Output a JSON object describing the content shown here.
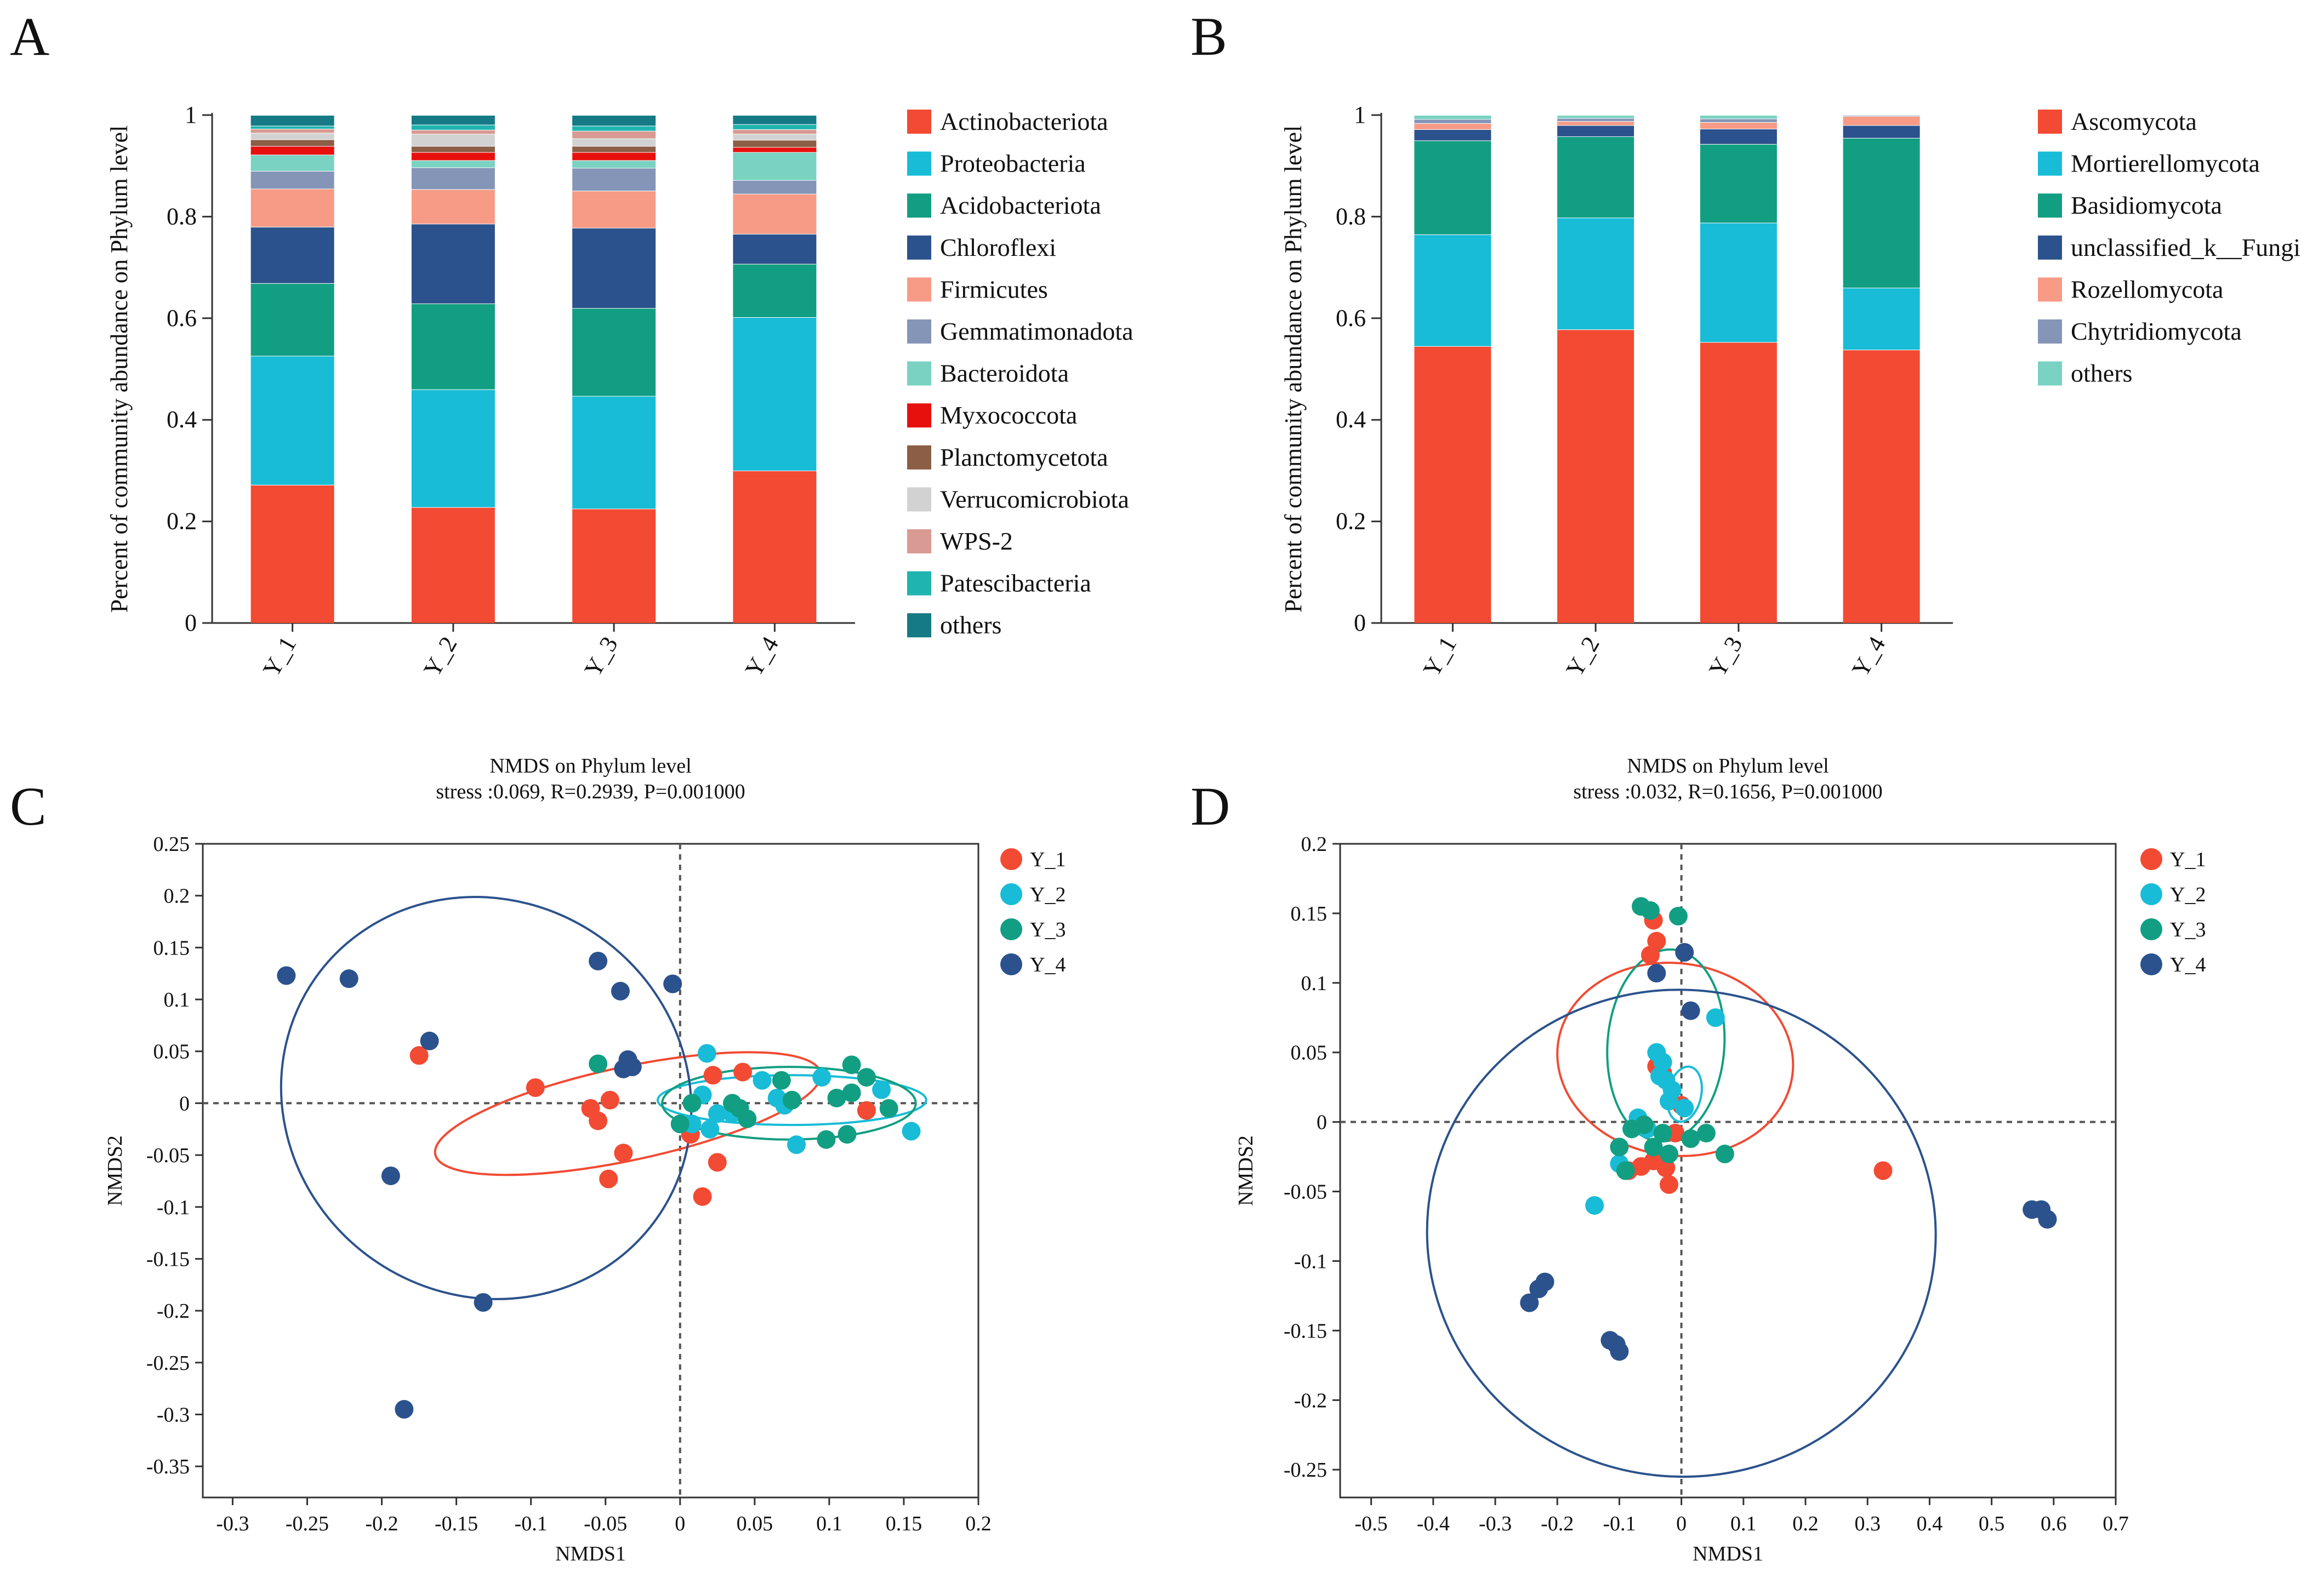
{
  "panel_letters": [
    "A",
    "B",
    "C",
    "D"
  ],
  "chart_data": [
    {
      "id": "A",
      "type": "bar",
      "stacked": true,
      "title": "",
      "xlabel": "",
      "ylabel": "Percent of community abundance on Phylum level",
      "ylim": [
        0,
        1
      ],
      "yticks": [
        0,
        0.2,
        0.4,
        0.6,
        0.8,
        1
      ],
      "ytick_labels": [
        "0",
        "0.2",
        "0.4",
        "0.6",
        "0.8",
        "1"
      ],
      "categories": [
        "Y_1",
        "Y_2",
        "Y_3",
        "Y_4"
      ],
      "legend_position": "right",
      "series": [
        {
          "name": "Actinobacteriota",
          "color": "#f24a33",
          "values": [
            0.272,
            0.228,
            0.225,
            0.3
          ]
        },
        {
          "name": "Proteobacteria",
          "color": "#18bcd6",
          "values": [
            0.254,
            0.232,
            0.222,
            0.302
          ]
        },
        {
          "name": "Acidobacteriota",
          "color": "#129e82",
          "values": [
            0.143,
            0.169,
            0.173,
            0.105
          ]
        },
        {
          "name": "Chloroflexi",
          "color": "#2b528c",
          "values": [
            0.111,
            0.157,
            0.158,
            0.059
          ]
        },
        {
          "name": "Firmicutes",
          "color": "#f79b86",
          "values": [
            0.075,
            0.068,
            0.073,
            0.079
          ]
        },
        {
          "name": "Gemmatimonadota",
          "color": "#8495b7",
          "values": [
            0.035,
            0.043,
            0.045,
            0.027
          ]
        },
        {
          "name": "Bacteroidota",
          "color": "#79d2c2",
          "values": [
            0.032,
            0.014,
            0.015,
            0.055
          ]
        },
        {
          "name": "Myxococcota",
          "color": "#e8100d",
          "values": [
            0.017,
            0.016,
            0.016,
            0.01
          ]
        },
        {
          "name": "Planctomycetota",
          "color": "#8c5e46",
          "values": [
            0.013,
            0.012,
            0.012,
            0.014
          ]
        },
        {
          "name": "Verrucomicrobiota",
          "color": "#d2d2d2",
          "values": [
            0.013,
            0.024,
            0.015,
            0.012
          ]
        },
        {
          "name": "WPS-2",
          "color": "#d89a92",
          "values": [
            0.008,
            0.008,
            0.015,
            0.009
          ]
        },
        {
          "name": "Patescibacteria",
          "color": "#1fb4b0",
          "values": [
            0.006,
            0.01,
            0.01,
            0.01
          ]
        },
        {
          "name": "others",
          "color": "#157a85",
          "values": [
            0.021,
            0.019,
            0.021,
            0.018
          ]
        }
      ]
    },
    {
      "id": "B",
      "type": "bar",
      "stacked": true,
      "title": "",
      "xlabel": "",
      "ylabel": "Percent of community abundance on Phylum level",
      "ylim": [
        0,
        1
      ],
      "yticks": [
        0,
        0.2,
        0.4,
        0.6,
        0.8,
        1
      ],
      "ytick_labels": [
        "0",
        "0.2",
        "0.4",
        "0.6",
        "0.8",
        "1"
      ],
      "categories": [
        "Y_1",
        "Y_2",
        "Y_3",
        "Y_4"
      ],
      "legend_position": "right",
      "series": [
        {
          "name": "Ascomycota",
          "color": "#f24a33",
          "values": [
            0.545,
            0.578,
            0.553,
            0.538
          ]
        },
        {
          "name": "Mortierellomycota",
          "color": "#18bcd6",
          "values": [
            0.22,
            0.22,
            0.235,
            0.122
          ]
        },
        {
          "name": "Basidiomycota",
          "color": "#129e82",
          "values": [
            0.185,
            0.16,
            0.155,
            0.295
          ]
        },
        {
          "name": "unclassified_k__Fungi",
          "color": "#2b528c",
          "values": [
            0.022,
            0.022,
            0.03,
            0.025
          ]
        },
        {
          "name": "Rozellomycota",
          "color": "#f79b86",
          "values": [
            0.012,
            0.008,
            0.013,
            0.018
          ]
        },
        {
          "name": "Chytridiomycota",
          "color": "#8495b7",
          "values": [
            0.008,
            0.006,
            0.007,
            0.002
          ]
        },
        {
          "name": "others",
          "color": "#79d2c2",
          "values": [
            0.008,
            0.006,
            0.007,
            0.0
          ]
        }
      ]
    },
    {
      "id": "C",
      "type": "scatter",
      "title": "NMDS on Phylum level",
      "subtitle": "stress :0.069, R=0.2939, P=0.001000",
      "xlabel": "NMDS1",
      "ylabel": "NMDS2",
      "xlim": [
        -0.32,
        0.2
      ],
      "ylim": [
        -0.38,
        0.25
      ],
      "xticks": [
        -0.3,
        -0.25,
        -0.2,
        -0.15,
        -0.1,
        -0.05,
        0,
        0.05,
        0.1,
        0.15,
        0.2
      ],
      "xtick_labels": [
        "-0.3",
        "-0.25",
        "-0.2",
        "-0.15",
        "-0.1",
        "-0.05",
        "0",
        "0.05",
        "0.1",
        "0.15",
        "0.2"
      ],
      "yticks": [
        0.25,
        0.2,
        0.15,
        0.1,
        0.05,
        0,
        -0.05,
        -0.1,
        -0.15,
        -0.2,
        -0.25,
        -0.3,
        -0.35
      ],
      "ytick_labels": [
        "0.25",
        "0.2",
        "0.15",
        "0.1",
        "0.05",
        "0",
        "-0.05",
        "-0.1",
        "-0.15",
        "-0.2",
        "-0.25",
        "-0.3",
        "-0.35"
      ],
      "legend_position": "top-right",
      "series": [
        {
          "name": "Y_1",
          "color": "#f24a33",
          "points": [
            [
              -0.175,
              0.046
            ],
            [
              -0.097,
              0.015
            ],
            [
              -0.06,
              -0.005
            ],
            [
              -0.055,
              -0.017
            ],
            [
              -0.047,
              0.003
            ],
            [
              -0.048,
              -0.073
            ],
            [
              -0.038,
              -0.048
            ],
            [
              0.007,
              -0.03
            ],
            [
              0.015,
              -0.09
            ],
            [
              0.022,
              0.027
            ],
            [
              0.025,
              -0.057
            ],
            [
              0.042,
              0.03
            ],
            [
              0.125,
              -0.007
            ]
          ],
          "ellipse": {
            "cx": -0.035,
            "cy": -0.01,
            "rx": 0.132,
            "ry": 0.045,
            "angle_deg": 12
          }
        },
        {
          "name": "Y_2",
          "color": "#18bcd6",
          "points": [
            [
              0.008,
              -0.02
            ],
            [
              0.015,
              0.008
            ],
            [
              0.018,
              0.048
            ],
            [
              0.02,
              -0.025
            ],
            [
              0.025,
              -0.01
            ],
            [
              0.035,
              -0.01
            ],
            [
              0.055,
              0.022
            ],
            [
              0.07,
              -0.002
            ],
            [
              0.078,
              -0.04
            ],
            [
              0.095,
              0.025
            ],
            [
              0.135,
              0.013
            ],
            [
              0.155,
              -0.027
            ],
            [
              0.065,
              0.005
            ]
          ],
          "ellipse": {
            "cx": 0.075,
            "cy": 0.003,
            "rx": 0.09,
            "ry": 0.024,
            "angle_deg": 0
          }
        },
        {
          "name": "Y_3",
          "color": "#129e82",
          "points": [
            [
              -0.055,
              0.038
            ],
            [
              0.0,
              -0.02
            ],
            [
              0.008,
              0.0
            ],
            [
              0.035,
              0.0
            ],
            [
              0.04,
              -0.005
            ],
            [
              0.045,
              -0.015
            ],
            [
              0.068,
              0.022
            ],
            [
              0.075,
              0.003
            ],
            [
              0.098,
              -0.035
            ],
            [
              0.105,
              0.005
            ],
            [
              0.115,
              0.01
            ],
            [
              0.115,
              0.037
            ],
            [
              0.112,
              -0.03
            ],
            [
              0.125,
              0.025
            ],
            [
              0.14,
              -0.005
            ]
          ],
          "ellipse": {
            "cx": 0.073,
            "cy": 0.0,
            "rx": 0.085,
            "ry": 0.035,
            "angle_deg": 0
          }
        },
        {
          "name": "Y_4",
          "color": "#2b528c",
          "points": [
            [
              -0.264,
              0.123
            ],
            [
              -0.222,
              0.12
            ],
            [
              -0.168,
              0.06
            ],
            [
              -0.194,
              -0.07
            ],
            [
              -0.185,
              -0.295
            ],
            [
              -0.132,
              -0.192
            ],
            [
              -0.055,
              0.137
            ],
            [
              -0.04,
              0.108
            ],
            [
              -0.038,
              0.033
            ],
            [
              -0.035,
              0.042
            ],
            [
              -0.032,
              0.035
            ],
            [
              -0.005,
              0.115
            ]
          ],
          "ellipse": {
            "cx": -0.13,
            "cy": 0.005,
            "rx": 0.14,
            "ry": 0.19,
            "angle_deg": -35
          }
        }
      ]
    },
    {
      "id": "D",
      "type": "scatter",
      "title": "NMDS on Phylum level",
      "subtitle": "stress :0.032, R=0.1656, P=0.001000",
      "xlabel": "NMDS1",
      "ylabel": "NMDS2",
      "xlim": [
        -0.55,
        0.7
      ],
      "ylim": [
        -0.27,
        0.2
      ],
      "xticks": [
        -0.5,
        -0.4,
        -0.3,
        -0.2,
        -0.1,
        0,
        0.1,
        0.2,
        0.3,
        0.4,
        0.5,
        0.6,
        0.7
      ],
      "xtick_labels": [
        "-0.5",
        "-0.4",
        "-0.3",
        "-0.2",
        "-0.1",
        "0",
        "0.1",
        "0.2",
        "0.3",
        "0.4",
        "0.5",
        "0.6",
        "0.7"
      ],
      "yticks": [
        0.2,
        0.15,
        0.1,
        0.05,
        0,
        -0.05,
        -0.1,
        -0.15,
        -0.2,
        -0.25
      ],
      "ytick_labels": [
        "0.2",
        "0.15",
        "0.1",
        "0.05",
        "0",
        "-0.05",
        "-0.1",
        "-0.15",
        "-0.2",
        "-0.25"
      ],
      "legend_position": "top-right",
      "series": [
        {
          "name": "Y_1",
          "color": "#f24a33",
          "points": [
            [
              -0.05,
              0.12
            ],
            [
              -0.045,
              0.145
            ],
            [
              -0.04,
              0.13
            ],
            [
              -0.04,
              0.04
            ],
            [
              -0.03,
              0.035
            ],
            [
              0.0,
              0.012
            ],
            [
              -0.01,
              -0.008
            ],
            [
              -0.045,
              -0.028
            ],
            [
              -0.025,
              -0.033
            ],
            [
              -0.02,
              -0.045
            ],
            [
              -0.065,
              -0.032
            ],
            [
              -0.085,
              -0.035
            ],
            [
              0.325,
              -0.035
            ]
          ],
          "ellipse": {
            "cx": -0.01,
            "cy": 0.045,
            "rx": 0.155,
            "ry": 0.085,
            "angle_deg": 82
          }
        },
        {
          "name": "Y_2",
          "color": "#18bcd6",
          "points": [
            [
              -0.04,
              0.05
            ],
            [
              -0.03,
              0.043
            ],
            [
              -0.035,
              0.033
            ],
            [
              -0.025,
              0.03
            ],
            [
              -0.02,
              0.015
            ],
            [
              -0.015,
              0.023
            ],
            [
              -0.07,
              0.003
            ],
            [
              -0.055,
              -0.005
            ],
            [
              -0.1,
              -0.03
            ],
            [
              0.055,
              0.075
            ],
            [
              -0.14,
              -0.06
            ],
            [
              0.005,
              0.01
            ]
          ],
          "ellipse": {
            "cx": 0.005,
            "cy": 0.02,
            "rx": 0.045,
            "ry": 0.012,
            "angle_deg": 78
          }
        },
        {
          "name": "Y_3",
          "color": "#129e82",
          "points": [
            [
              -0.065,
              0.155
            ],
            [
              -0.05,
              0.152
            ],
            [
              -0.005,
              0.148
            ],
            [
              -0.08,
              -0.005
            ],
            [
              -0.06,
              -0.002
            ],
            [
              -0.03,
              -0.008
            ],
            [
              -0.045,
              -0.018
            ],
            [
              -0.1,
              -0.018
            ],
            [
              -0.02,
              -0.023
            ],
            [
              0.015,
              -0.012
            ],
            [
              0.04,
              -0.008
            ],
            [
              0.07,
              -0.023
            ],
            [
              -0.09,
              -0.035
            ]
          ],
          "ellipse": {
            "cx": -0.025,
            "cy": 0.055,
            "rx": 0.155,
            "ry": 0.042,
            "angle_deg": 86
          }
        },
        {
          "name": "Y_4",
          "color": "#2b528c",
          "points": [
            [
              0.005,
              0.122
            ],
            [
              -0.04,
              0.107
            ],
            [
              0.015,
              0.08
            ],
            [
              -0.245,
              -0.13
            ],
            [
              -0.23,
              -0.12
            ],
            [
              -0.22,
              -0.115
            ],
            [
              -0.115,
              -0.157
            ],
            [
              -0.105,
              -0.16
            ],
            [
              -0.1,
              -0.165
            ],
            [
              0.565,
              -0.063
            ],
            [
              0.58,
              -0.063
            ],
            [
              0.59,
              -0.07
            ]
          ],
          "ellipse": {
            "cx": 0.0,
            "cy": -0.08,
            "rx": 0.41,
            "ry": 0.175,
            "angle_deg": -5
          }
        }
      ]
    }
  ]
}
